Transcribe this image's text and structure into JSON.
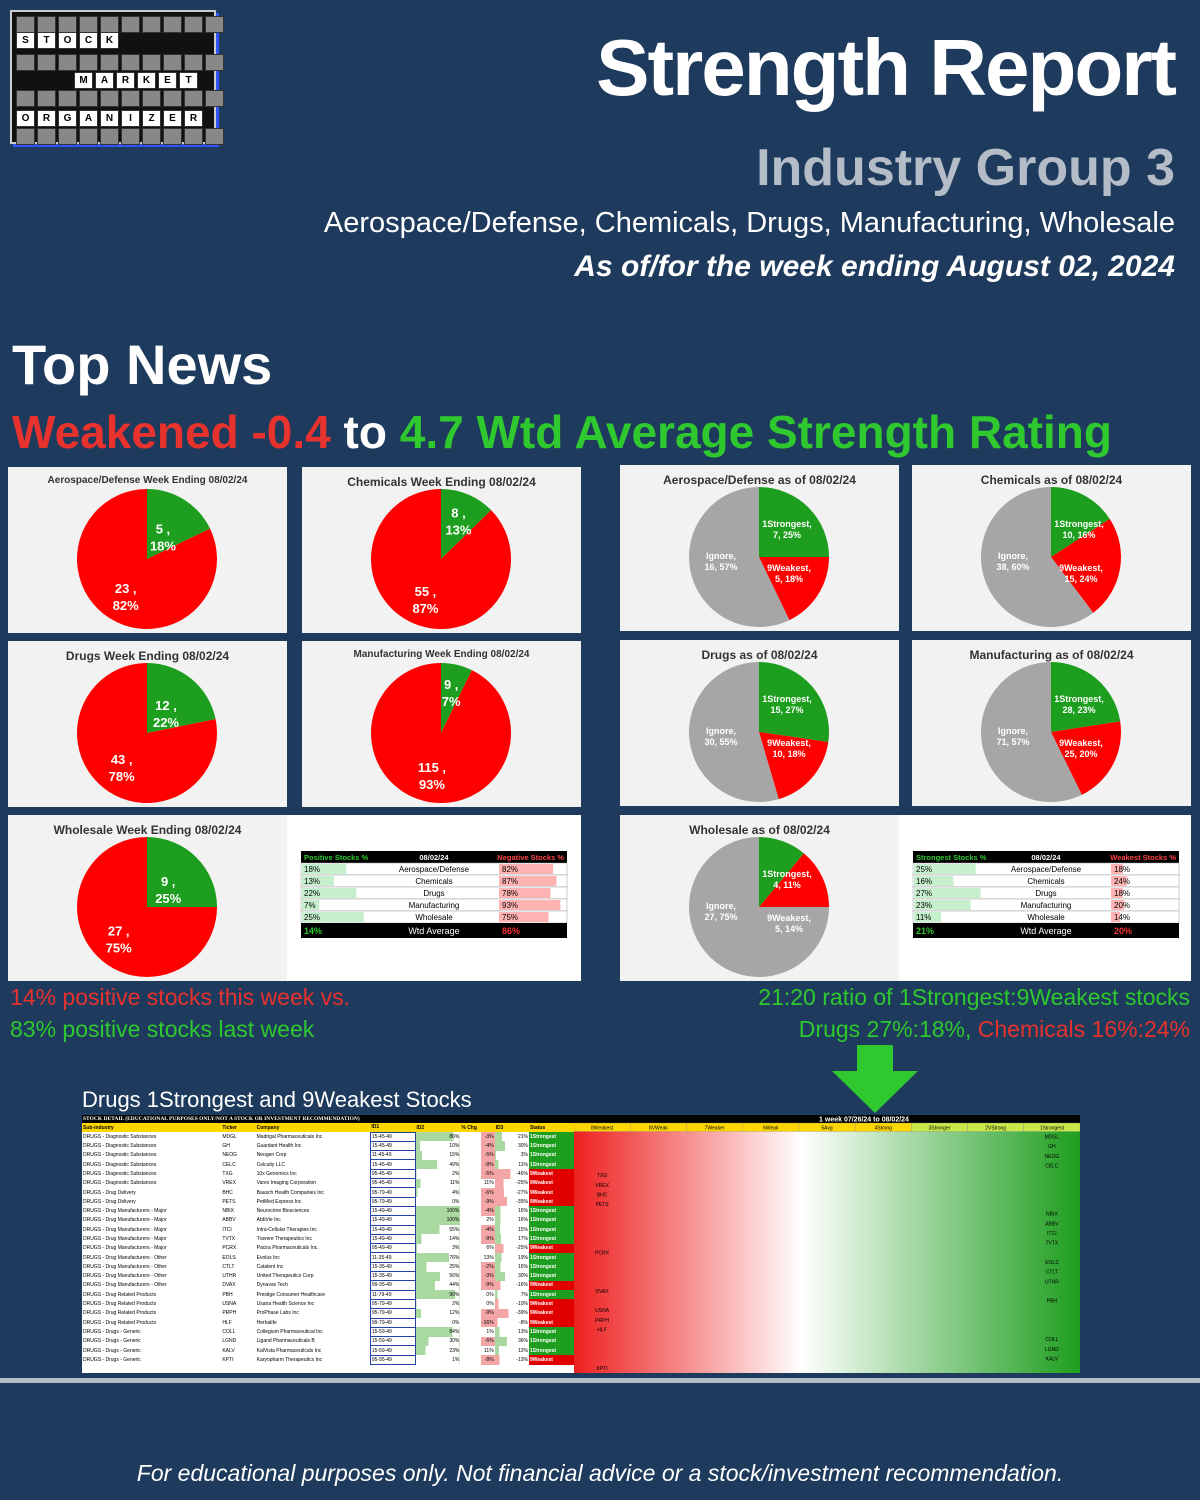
{
  "logo": {
    "rows": [
      [
        "S",
        "T",
        "O",
        "C",
        "K"
      ],
      [
        "M",
        "A",
        "R",
        "K",
        "E",
        "T"
      ],
      [
        "O",
        "R",
        "G",
        "A",
        "N",
        "I",
        "Z",
        "E",
        "R"
      ]
    ]
  },
  "header": {
    "title": "Strength Report",
    "subtitle": "Industry Group 3",
    "groups": "Aerospace/Defense, Chemicals, Drugs, Manufacturing, Wholesale",
    "week": "As of/for the week ending August 02, 2024"
  },
  "news": {
    "heading": "Top News",
    "weakened": "Weakened -0.4",
    "to": "to",
    "rating": "4.7 Wtd Average Strength Rating"
  },
  "colors": {
    "green": "#1e9e1e",
    "red": "#ff0000",
    "gray": "#a6a6a6"
  },
  "chart_data": [
    {
      "type": "pie",
      "title": "Aerospace/Defense Week Ending 08/02/24",
      "labels": [
        "5 , 18%",
        "23 , 82%"
      ],
      "values": [
        5,
        23
      ]
    },
    {
      "type": "pie",
      "title": "Chemicals Week Ending 08/02/24",
      "labels": [
        "8 , 13%",
        "55 , 87%"
      ],
      "values": [
        8,
        55
      ]
    },
    {
      "type": "pie",
      "title": "Drugs Week Ending 08/02/24",
      "labels": [
        "12 , 22%",
        "43 , 78%"
      ],
      "values": [
        12,
        43
      ]
    },
    {
      "type": "pie",
      "title": "Manufacturing  Week Ending 08/02/24",
      "labels": [
        "9 , 7%",
        "115 , 93%"
      ],
      "values": [
        9,
        115
      ]
    },
    {
      "type": "pie",
      "title": "Wholesale Week Ending 08/02/24",
      "labels": [
        "9 , 25%",
        "27 , 75%"
      ],
      "values": [
        9,
        27
      ]
    },
    {
      "type": "pie",
      "title": "Aerospace/Defense as of 08/02/24",
      "labels": [
        "1Strongest, 7, 25%",
        "9Weakest, 5, 18%",
        "Ignore, 16, 57%"
      ],
      "values": [
        7,
        5,
        16
      ]
    },
    {
      "type": "pie",
      "title": "Chemicals as of 08/02/24",
      "labels": [
        "1Strongest, 10, 16%",
        "9Weakest, 15, 24%",
        "Ignore, 38, 60%"
      ],
      "values": [
        10,
        15,
        38
      ]
    },
    {
      "type": "pie",
      "title": "Drugs as of 08/02/24",
      "labels": [
        "1Strongest, 15, 27%",
        "9Weakest, 10, 18%",
        "Ignore, 30, 55%"
      ],
      "values": [
        15,
        10,
        30
      ]
    },
    {
      "type": "pie",
      "title": "Manufacturing as of 08/02/24",
      "labels": [
        "1Strongest, 28, 23%",
        "9Weakest, 25, 20%",
        "Ignore, 71, 57%"
      ],
      "values": [
        28,
        25,
        71
      ]
    },
    {
      "type": "pie",
      "title": "Wholesale as of 08/02/24",
      "labels": [
        "1Strongest, 4, 11%",
        "9Weakest, 5, 14%",
        "Ignore, 27, 75%"
      ],
      "values": [
        4,
        5,
        27
      ]
    }
  ],
  "summary_left": {
    "h_pos": "Positive Stocks %",
    "h_date": "08/02/24",
    "h_neg": "Negative Stocks %",
    "rows": [
      [
        "18%",
        "Aerospace/Defense",
        "82%"
      ],
      [
        "13%",
        "Chemicals",
        "87%"
      ],
      [
        "22%",
        "Drugs",
        "78%"
      ],
      [
        "7%",
        "Manufacturing",
        "93%"
      ],
      [
        "25%",
        "Wholesale",
        "75%"
      ]
    ],
    "avg": [
      "14%",
      "Wtd Average",
      "86%"
    ]
  },
  "summary_right": {
    "h_pos": "Strongest Stocks %",
    "h_date": "08/02/24",
    "h_neg": "Weakest Stocks %",
    "rows": [
      [
        "25%",
        "Aerospace/Defense",
        "18%"
      ],
      [
        "16%",
        "Chemicals",
        "24%"
      ],
      [
        "27%",
        "Drugs",
        "18%"
      ],
      [
        "23%",
        "Manufacturing",
        "20%"
      ],
      [
        "11%",
        "Wholesale",
        "14%"
      ]
    ],
    "avg": [
      "21%",
      "Wtd Average",
      "20%"
    ]
  },
  "notes": {
    "left1": "14% positive stocks this week vs.",
    "left2": "83% positive stocks last week",
    "right1": "21:20 ratio of 1Strongest:9Weakest stocks",
    "right2a": "Drugs 27%:18%,",
    "right2b": "Chemicals 16%:24%"
  },
  "table": {
    "caption": "Drugs 1Strongest and 9Weakest Stocks",
    "detail_title": "STOCK DETAIL (EDUCATIONAL PURPOSES ONLY/NOT A STOCK OR INVESTMENT RECOMMENDATION)",
    "grid_title": "1 week 07/26/24 to 08/02/24",
    "headers": [
      "Sub-industry",
      "Ticker",
      "Company",
      "ID1",
      "ID2",
      "% Chg",
      "ID3",
      "Status"
    ],
    "grid_headers": [
      "8Weakest",
      "8VWeak",
      "7Weaker",
      "6Weak",
      "5Avg",
      "4Strong",
      "3Stronger",
      "2VStrong",
      "1Strongest"
    ],
    "rows": [
      [
        "DRUGS - Diagnostic Substances",
        "MDGL",
        "Madrigal Pharmaceuticals Inc",
        "15-45-49",
        "86%",
        "-3%",
        "21%",
        "1Strongest"
      ],
      [
        "DRUGS - Diagnostic Substances",
        "GH",
        "Guardant Health Inc",
        "15-45-49",
        "10%",
        "-4%",
        "30%",
        "1Strongest"
      ],
      [
        "DRUGS - Diagnostic Substances",
        "NEOG",
        "Neogen Corp",
        "11-45-49",
        "15%",
        "-5%",
        "3%",
        "1Strongest"
      ],
      [
        "DRUGS - Diagnostic Substances",
        "CELC",
        "Celcuity LLC",
        "15-45-49",
        "49%",
        "-8%",
        "11%",
        "1Strongest"
      ],
      [
        "DRUGS - Diagnostic Substances",
        "TXG",
        "10x Genomics Inc",
        "95-45-49",
        "2%",
        "-5%",
        "-46%",
        "9Weakest"
      ],
      [
        "DRUGS - Diagnostic Substances",
        "VREX",
        "Varex Imaging Corporation",
        "95-45-49",
        "11%",
        "11%",
        "-25%",
        "9Weakest"
      ],
      [
        "DRUGS - Drug Delivery",
        "BHC",
        "Bausch Health Companies Inc",
        "95-79-49",
        "4%",
        "-6%",
        "-27%",
        "9Weakest"
      ],
      [
        "DRUGS - Drug Delivery",
        "PETS",
        "PetMed Express Inc",
        "95-79-49",
        "0%",
        "-9%",
        "-35%",
        "9Weakest"
      ],
      [
        "DRUGS - Drug Manufacturers - Major",
        "NBIX",
        "Neurocrine Biosciences",
        "15-49-49",
        "100%",
        "-4%",
        "16%",
        "1Strongest"
      ],
      [
        "DRUGS - Drug Manufacturers - Major",
        "ABBV",
        "AbbVie Inc",
        "15-49-49",
        "100%",
        "2%",
        "16%",
        "1Strongest"
      ],
      [
        "DRUGS - Drug Manufacturers - Major",
        "ITCI",
        "Intra-Cellular Therapies Inc",
        "15-49-49",
        "55%",
        "-4%",
        "15%",
        "1Strongest"
      ],
      [
        "DRUGS - Drug Manufacturers - Major",
        "TVTX",
        "Travere Therapeutics Inc",
        "15-49-49",
        "14%",
        "-9%",
        "17%",
        "1Strongest"
      ],
      [
        "DRUGS - Drug Manufacturers - Major",
        "PCRX",
        "Pacira Pharmaceuticals Inc.",
        "95-49-49",
        "3%",
        "6%",
        "-25%",
        "9Weakest"
      ],
      [
        "DRUGS - Drug Manufacturers - Other",
        "EOLS",
        "Evolus Inc",
        "11-35-49",
        "76%",
        "13%",
        "19%",
        "1Strongest"
      ],
      [
        "DRUGS - Drug Manufacturers - Other",
        "CTLT",
        "Catalent Inc",
        "15-35-49",
        "25%",
        "-2%",
        "16%",
        "1Strongest"
      ],
      [
        "DRUGS - Drug Manufacturers - Other",
        "UTHR",
        "United Therapeutics Corp",
        "15-35-49",
        "56%",
        "-3%",
        "30%",
        "1Strongest"
      ],
      [
        "DRUGS - Drug Manufacturers - Other",
        "DVAX",
        "Dynavax Tech",
        "99-35-49",
        "44%",
        "-9%",
        "-16%",
        "9Weakest"
      ],
      [
        "DRUGS - Drug Related Products",
        "PBH",
        "Prestige Consumer Healthcare",
        "11-79-49",
        "90%",
        "0%",
        "7%",
        "1Strongest"
      ],
      [
        "DRUGS - Drug Related Products",
        "USNA",
        "Usana Health Science Inc",
        "95-79-49",
        "2%",
        "0%",
        "-10%",
        "9Weakest"
      ],
      [
        "DRUGS - Drug Related Products",
        "PRPH",
        "ProPhase Labs Inc",
        "95-79-49",
        "12%",
        "-9%",
        "-39%",
        "9Weakest"
      ],
      [
        "DRUGS - Drug Related Products",
        "HLF",
        "Herbalife",
        "99-79-49",
        "0%",
        "-16%",
        "-8%",
        "9Weakest"
      ],
      [
        "DRUGS - Drugs - Generic",
        "COLL",
        "Collegium Pharmaceutical Inc",
        "15-59-49",
        "84%",
        "1%",
        "13%",
        "1Strongest"
      ],
      [
        "DRUGS - Drugs - Generic",
        "LGND",
        "Ligand Pharmaceuticals B",
        "15-59-49",
        "30%",
        "-6%",
        "36%",
        "1Strongest"
      ],
      [
        "DRUGS - Drugs - Generic",
        "KALV",
        "KalVista Pharmaceuticals Inc",
        "15-59-49",
        "23%",
        "11%",
        "12%",
        "1Strongest"
      ],
      [
        "DRUGS - Drugs - Generic",
        "KPTI",
        "Karyopharm Therapeutics Inc",
        "95-95-49",
        "1%",
        "-8%",
        "-13%",
        "9Weakest"
      ]
    ]
  },
  "footer": "For educational purposes only. Not financial advice or a stock/investment recommendation."
}
